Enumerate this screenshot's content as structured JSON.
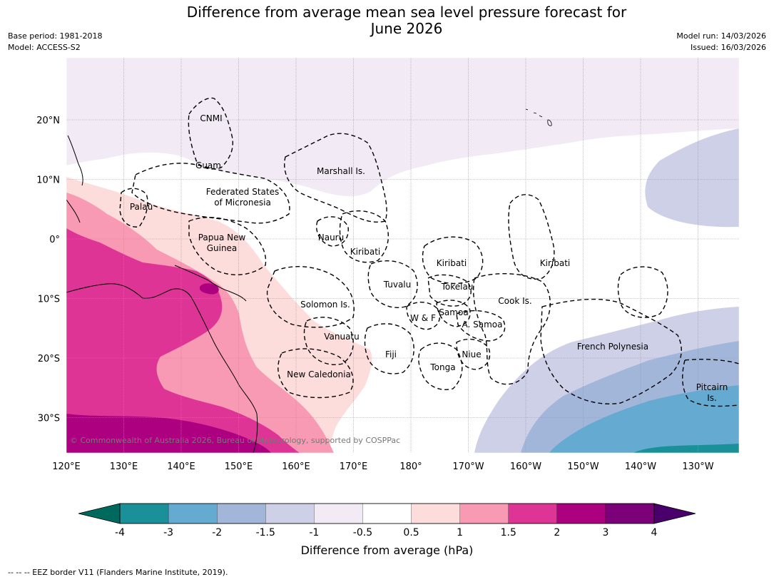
{
  "title_line1": "Difference from average mean sea level pressure forecast for",
  "title_line2": "June 2026",
  "base_period": "Base period: 1981-2018",
  "model": "Model: ACCESS-S2",
  "model_run": "Model run: 14/03/2026",
  "issued": "Issued: 16/03/2026",
  "copyright": "© Commonwealth of Australia 2026, Bureau of Meteorology, supported by COSPPac",
  "footnote": "--  --  -- EEZ border V11 (Flanders Marine Institute, 2019).",
  "lon_labels": [
    "120°E",
    "130°E",
    "140°E",
    "150°E",
    "160°E",
    "170°E",
    "180°",
    "170°W",
    "160°W",
    "150°W",
    "140°W",
    "130°W"
  ],
  "lat_labels": [
    "20°N",
    "10°N",
    "0°",
    "10°S",
    "20°S",
    "30°S"
  ],
  "regions": [
    {
      "name": "CNMI"
    },
    {
      "name": "Guam"
    },
    {
      "name": "Marshall Is."
    },
    {
      "name": "Federated States"
    },
    {
      "name": "of Micronesia"
    },
    {
      "name": "Palau"
    },
    {
      "name": "Papua New"
    },
    {
      "name": "Guinea"
    },
    {
      "name": "Nauru"
    },
    {
      "name": "Kiribati"
    },
    {
      "name": "Kiribati"
    },
    {
      "name": "Kiribati"
    },
    {
      "name": "Tuvalu"
    },
    {
      "name": "Tokelau"
    },
    {
      "name": "Solomon Is."
    },
    {
      "name": "Cook Is."
    },
    {
      "name": "W & F"
    },
    {
      "name": "Samoa"
    },
    {
      "name": "A. Samoa"
    },
    {
      "name": "Vanuatu"
    },
    {
      "name": "Fiji"
    },
    {
      "name": "Niue"
    },
    {
      "name": "French Polynesia"
    },
    {
      "name": "Tonga"
    },
    {
      "name": "New Caledonia"
    },
    {
      "name": "Pitcairn"
    },
    {
      "name": "Is."
    }
  ],
  "colorbar": {
    "label": "Difference from average (hPa)",
    "ticks": [
      "-4",
      "-3",
      "-2",
      "-1.5",
      "-1",
      "-0.5",
      "0.5",
      "1",
      "1.5",
      "2",
      "3",
      "4"
    ],
    "colors": [
      "#1a9199",
      "#65aad1",
      "#a2b6d9",
      "#cdd0e6",
      "#f2ebf5",
      "#ffffff",
      "#fddcdc",
      "#f89ab3",
      "#dd3495",
      "#ac0080",
      "#7c0078"
    ],
    "under_color": "#00695e",
    "over_color": "#4a006a"
  },
  "chart_data": {
    "type": "map",
    "title": "Difference from average mean sea level pressure forecast for June 2026",
    "variable": "Mean sea level pressure anomaly",
    "units": "hPa",
    "lon_range": [
      "120°E",
      "125°W"
    ],
    "lat_range": [
      "35°S",
      "30°N"
    ],
    "levels": [
      -4,
      -3,
      -2,
      -1.5,
      -1,
      -0.5,
      0.5,
      1,
      1.5,
      2,
      3,
      4
    ]
  }
}
